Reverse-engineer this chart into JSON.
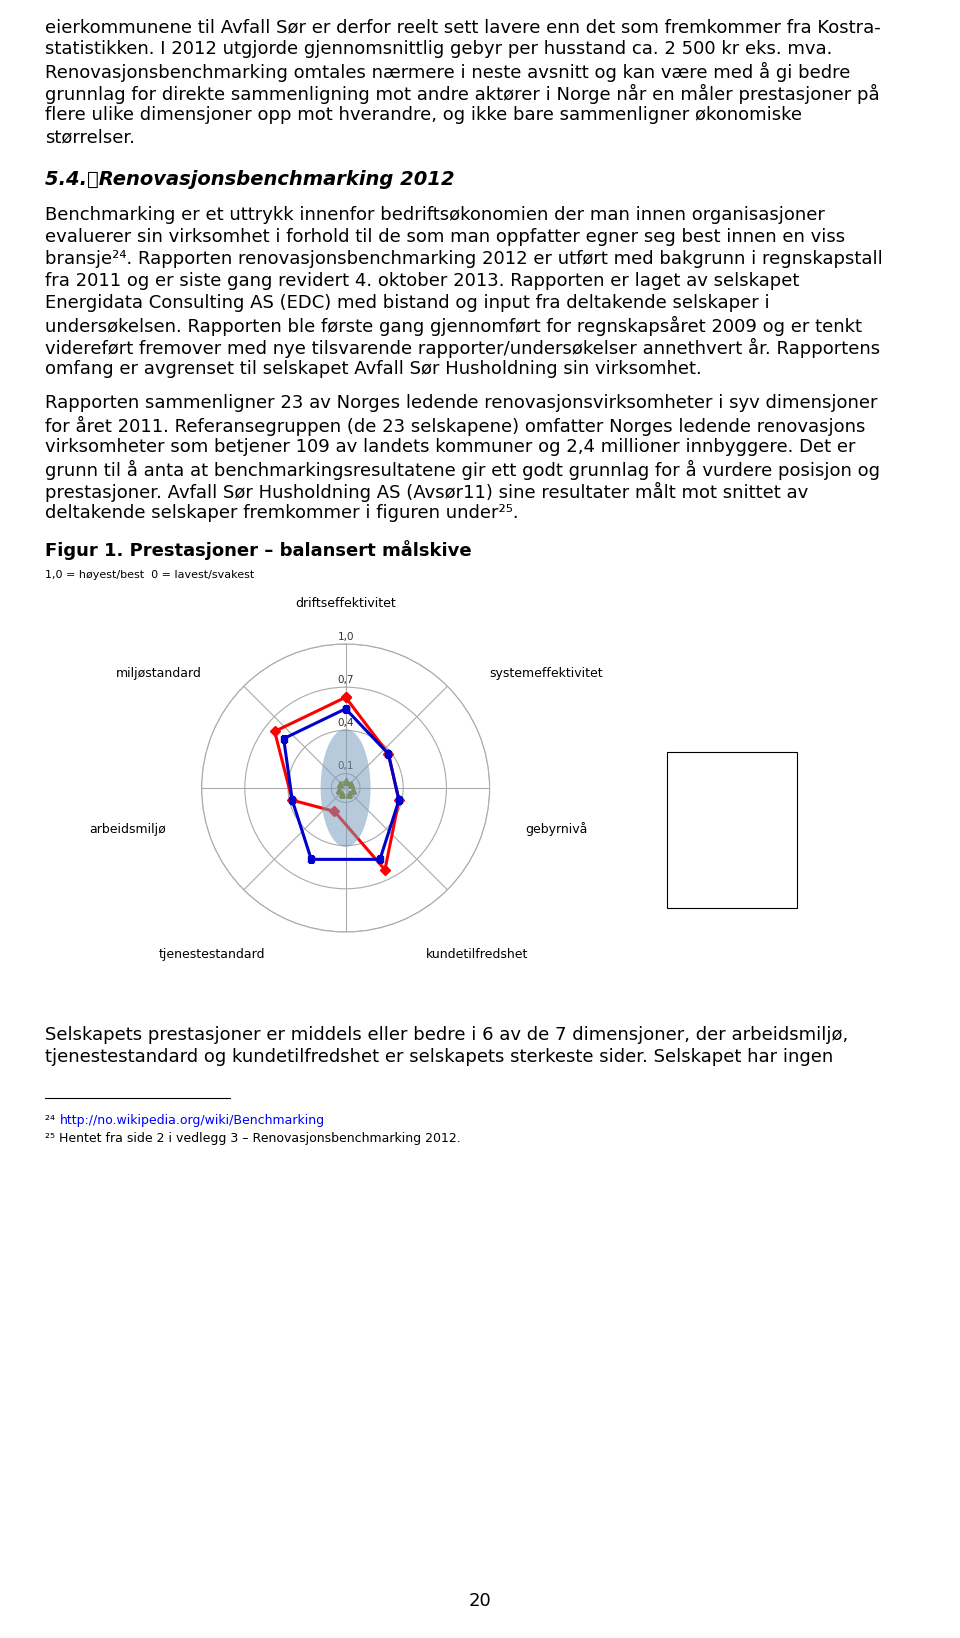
{
  "page_number": "20",
  "fig_title": "Figur 1. Prestasjoner – balansert målskive",
  "axis_note": "1,0 = høyest/best  0 = lavest/svakest",
  "categories": [
    "driftseffektivitet",
    "systemeffektivitet",
    "geby rnivå",
    "kundetilfredshet",
    "tjenestestandard",
    "arbeidsmiljø",
    "miljøstandard"
  ],
  "tick_labels": [
    "0,1",
    "0,4",
    "0,7",
    "1,0"
  ],
  "tick_values": [
    0.1,
    0.4,
    0.7,
    1.0
  ],
  "avsør11_values": [
    0.63,
    0.38,
    0.38,
    0.63,
    0.18,
    0.38,
    0.63
  ],
  "middel_values": [
    0.55,
    0.38,
    0.38,
    0.55,
    0.55,
    0.38,
    0.55
  ],
  "third_values": [
    0.05,
    0.05,
    0.05,
    0.05,
    0.05,
    0.05,
    0.05
  ],
  "avsør11_color": "#ff0000",
  "middel_color": "#0000cc",
  "third_color": "#808000",
  "grid_color": "#aaaaaa",
  "oval_color": "#7a9fbf",
  "oval_alpha": 0.55,
  "background_color": "#ffffff",
  "text_color": "#000000",
  "footnote24_url": "http://no.wikipedia.org/wiki/Benchmarking",
  "footnote25_text": "Hentet fra side 2 i vedlegg 3 – Renovasjonsbenchmarking 2012."
}
